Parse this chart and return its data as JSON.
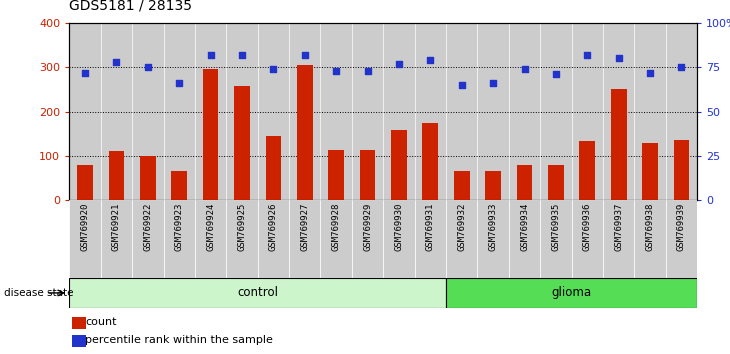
{
  "title": "GDS5181 / 28135",
  "samples": [
    "GSM769920",
    "GSM769921",
    "GSM769922",
    "GSM769923",
    "GSM769924",
    "GSM769925",
    "GSM769926",
    "GSM769927",
    "GSM769928",
    "GSM769929",
    "GSM769930",
    "GSM769931",
    "GSM769932",
    "GSM769933",
    "GSM769934",
    "GSM769935",
    "GSM769936",
    "GSM769937",
    "GSM769938",
    "GSM769939"
  ],
  "counts": [
    80,
    110,
    100,
    65,
    295,
    258,
    145,
    305,
    113,
    112,
    158,
    175,
    65,
    65,
    80,
    80,
    133,
    250,
    128,
    135
  ],
  "percentiles": [
    72,
    78,
    75,
    66,
    82,
    82,
    74,
    82,
    73,
    73,
    77,
    79,
    65,
    66,
    74,
    71,
    82,
    80,
    72,
    75
  ],
  "group": [
    "control",
    "control",
    "control",
    "control",
    "control",
    "control",
    "control",
    "control",
    "control",
    "control",
    "control",
    "control",
    "glioma",
    "glioma",
    "glioma",
    "glioma",
    "glioma",
    "glioma",
    "glioma",
    "glioma"
  ],
  "n_control": 12,
  "n_glioma": 8,
  "bar_color": "#cc2200",
  "dot_color": "#2233cc",
  "control_color_light": "#ccf5cc",
  "control_color_dark": "#99ee99",
  "glioma_color": "#55dd55",
  "label_bg_color": "#cccccc",
  "bar_ylim": [
    0,
    400
  ],
  "bar_yticks": [
    0,
    100,
    200,
    300,
    400
  ],
  "bar_ytick_labels": [
    "0",
    "100",
    "200",
    "300",
    "400"
  ],
  "pct_yticks": [
    0,
    25,
    50,
    75,
    100
  ],
  "pct_ytick_labels": [
    "0",
    "25",
    "50",
    "75",
    "100%"
  ],
  "grid_values": [
    100,
    200,
    300
  ],
  "legend_count_label": "count",
  "legend_pct_label": "percentile rank within the sample",
  "disease_state_label": "disease state"
}
